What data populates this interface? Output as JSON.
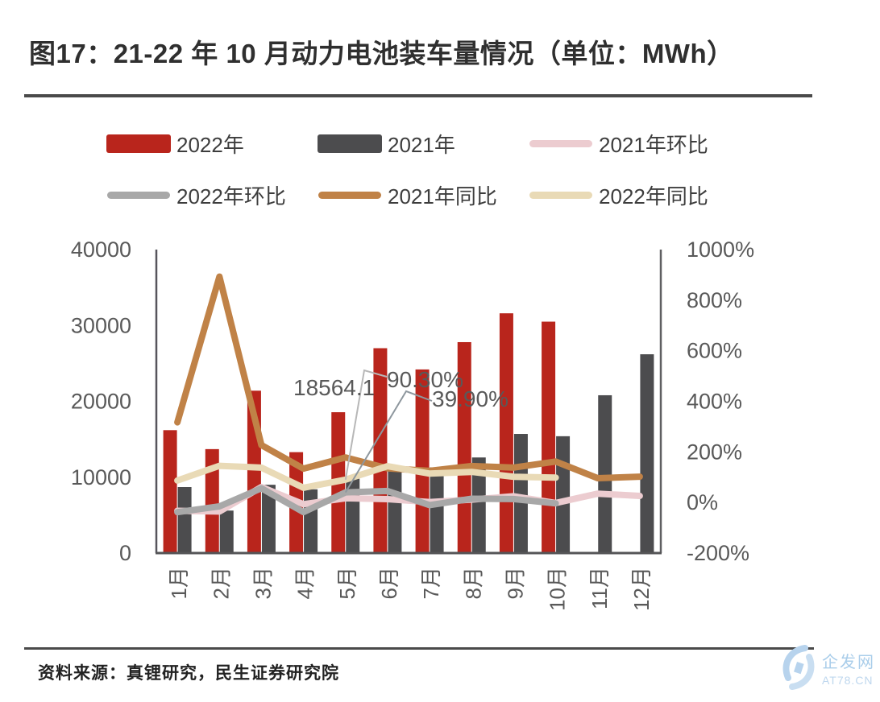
{
  "figure": {
    "title": "图17：21-22 年 10 月动力电池装车量情况（单位：MWh）",
    "source": "资料来源：真锂研究，民生证券研究院"
  },
  "watermark": {
    "line1": "企发网",
    "line2": "AT78.CN"
  },
  "legend": [
    {
      "label": "2022年",
      "swatch": "rect",
      "color": "#b9251c"
    },
    {
      "label": "2021年",
      "swatch": "rect",
      "color": "#4c4c4e"
    },
    {
      "label": "2021年环比",
      "swatch": "line",
      "color": "#ecccd0"
    },
    {
      "label": "2022年环比",
      "swatch": "line",
      "color": "#a8a8a8"
    },
    {
      "label": "2021年同比",
      "swatch": "line",
      "color": "#c08247"
    },
    {
      "label": "2022年同比",
      "swatch": "line",
      "color": "#e9dab6"
    }
  ],
  "chart_data": {
    "type": "bar",
    "subtype": "combo-bar-line-dual-axis",
    "unit": "MWh",
    "categories": [
      "1月",
      "2月",
      "3月",
      "4月",
      "5月",
      "6月",
      "7月",
      "8月",
      "9月",
      "10月",
      "11月",
      "12月"
    ],
    "bar_series": [
      {
        "name": "2022年",
        "color": "#b9251c",
        "axis": "left",
        "values": [
          16200,
          13700,
          21400,
          13300,
          18564.1,
          27000,
          24200,
          27800,
          31600,
          30500,
          null,
          null
        ]
      },
      {
        "name": "2021年",
        "color": "#4c4c4e",
        "axis": "left",
        "values": [
          8700,
          5600,
          9000,
          8400,
          9800,
          11100,
          11300,
          12600,
          15700,
          15400,
          20800,
          26200
        ]
      }
    ],
    "line_series": [
      {
        "name": "2021年环比",
        "color": "#ecccd0",
        "axis": "right",
        "values": [
          -33,
          -35.6,
          60.9,
          -6.7,
          16.7,
          13.3,
          1.8,
          11.5,
          24.6,
          -1.9,
          35,
          26
        ]
      },
      {
        "name": "2021年同比",
        "color": "#c08247",
        "axis": "right",
        "values": [
          317,
          893,
          227,
          134,
          178,
          135,
          125,
          144,
          138,
          162,
          96,
          102
        ]
      },
      {
        "name": "2022年环比",
        "color": "#a8a8a8",
        "axis": "right",
        "values": [
          -38.2,
          -15.4,
          56.2,
          -37.9,
          39.9,
          45.4,
          -10.4,
          14.9,
          13.7,
          -3.5,
          null,
          null
        ]
      },
      {
        "name": "2022年同比",
        "color": "#e9dab6",
        "axis": "right",
        "values": [
          86.9,
          145.1,
          137.8,
          58.1,
          90.3,
          143.3,
          114.2,
          121,
          101.6,
          98.1,
          null,
          null
        ]
      }
    ],
    "left_axis": {
      "min": 0,
      "max": 40000,
      "ticks": [
        0,
        10000,
        20000,
        30000,
        40000
      ],
      "labels": [
        "0",
        "10000",
        "20000",
        "30000",
        "40000"
      ]
    },
    "right_axis": {
      "min": -200,
      "max": 1000,
      "ticks": [
        -200,
        0,
        200,
        400,
        600,
        800,
        1000
      ],
      "labels": [
        "-200%",
        "0%",
        "200%",
        "400%",
        "600%",
        "800%",
        "1000%"
      ]
    },
    "annotations": [
      {
        "label": "18564.1",
        "month": "5月",
        "series": "2022年"
      },
      {
        "label": "90.30%",
        "month": "5月",
        "series": "2022年同比"
      },
      {
        "label": "39.90%",
        "month": "5月",
        "series": "2022年环比"
      }
    ],
    "grid": false,
    "legend_position": "top"
  }
}
